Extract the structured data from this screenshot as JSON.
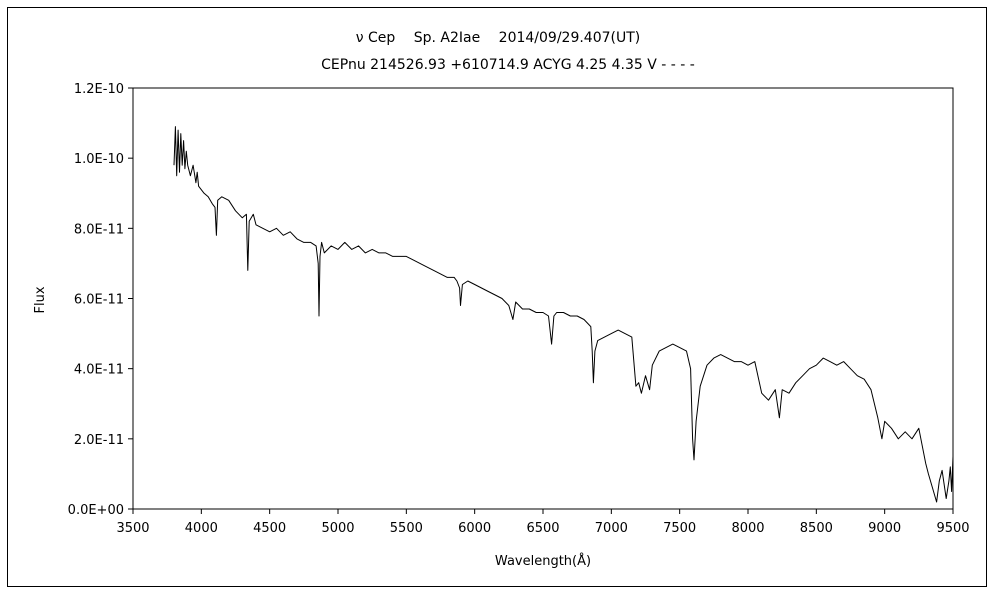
{
  "chart_data": {
    "type": "line",
    "title": "ν Cep　 Sp. A2Iae　 2014/09/29.407(UT)",
    "subtitle": "CEPnu 214526.93 +610714.9 ACYG 4.25 4.35 V - - - -",
    "xlabel": "Wavelength(Å)",
    "ylabel": "Flux",
    "xlim": [
      3500,
      9500
    ],
    "ylim": [
      0,
      1.2e-10
    ],
    "xticks": [
      3500,
      4000,
      4500,
      5000,
      5500,
      6000,
      6500,
      7000,
      7500,
      8000,
      8500,
      9000,
      9500
    ],
    "xtick_labels": [
      "3500",
      "4000",
      "4500",
      "5000",
      "5500",
      "6000",
      "6500",
      "7000",
      "7500",
      "8000",
      "8500",
      "9000",
      "9500"
    ],
    "yticks": [
      0,
      2e-11,
      4e-11,
      6e-11,
      8e-11,
      1e-10,
      1.2e-10
    ],
    "ytick_labels": [
      "0.0E+00",
      "2.0E-11",
      "4.0E-11",
      "6.0E-11",
      "8.0E-11",
      "1.0E-10",
      "1.2E-10"
    ],
    "grid": false,
    "series": [
      {
        "color": "#000000",
        "x": [
          3800,
          3810,
          3820,
          3830,
          3840,
          3850,
          3860,
          3870,
          3880,
          3890,
          3900,
          3920,
          3940,
          3960,
          3970,
          3980,
          4000,
          4020,
          4050,
          4080,
          4100,
          4110,
          4120,
          4150,
          4200,
          4250,
          4300,
          4330,
          4340,
          4350,
          4380,
          4400,
          4450,
          4500,
          4550,
          4600,
          4650,
          4700,
          4750,
          4800,
          4840,
          4855,
          4861,
          4868,
          4880,
          4900,
          4950,
          5000,
          5050,
          5100,
          5150,
          5200,
          5250,
          5300,
          5350,
          5400,
          5450,
          5500,
          5550,
          5600,
          5650,
          5700,
          5750,
          5800,
          5850,
          5870,
          5890,
          5896,
          5910,
          5950,
          6000,
          6050,
          6100,
          6150,
          6200,
          6250,
          6280,
          6300,
          6350,
          6400,
          6450,
          6500,
          6540,
          6563,
          6580,
          6600,
          6650,
          6700,
          6750,
          6800,
          6850,
          6860,
          6869,
          6880,
          6900,
          6950,
          7000,
          7050,
          7100,
          7150,
          7180,
          7200,
          7220,
          7250,
          7280,
          7300,
          7350,
          7400,
          7450,
          7500,
          7550,
          7580,
          7595,
          7605,
          7620,
          7650,
          7700,
          7750,
          7800,
          7850,
          7900,
          7950,
          8000,
          8050,
          8100,
          8150,
          8200,
          8230,
          8250,
          8300,
          8350,
          8400,
          8450,
          8500,
          8550,
          8600,
          8650,
          8700,
          8750,
          8800,
          8850,
          8900,
          8950,
          8980,
          9000,
          9050,
          9100,
          9150,
          9200,
          9250,
          9300,
          9320,
          9350,
          9380,
          9400,
          9420,
          9450,
          9470,
          9480,
          9490,
          9500
        ],
        "y": [
          9.8e-11,
          1.09e-10,
          9.5e-11,
          1.08e-10,
          9.6e-11,
          1.07e-10,
          9.8e-11,
          1.05e-10,
          9.7e-11,
          1.02e-10,
          9.8e-11,
          9.5e-11,
          9.8e-11,
          9.3e-11,
          9.6e-11,
          9.2e-11,
          9.1e-11,
          9e-11,
          8.9e-11,
          8.7e-11,
          8.6e-11,
          7.8e-11,
          8.8e-11,
          8.9e-11,
          8.8e-11,
          8.5e-11,
          8.3e-11,
          8.4e-11,
          6.8e-11,
          8.2e-11,
          8.4e-11,
          8.1e-11,
          8e-11,
          7.9e-11,
          8e-11,
          7.8e-11,
          7.9e-11,
          7.7e-11,
          7.6e-11,
          7.6e-11,
          7.5e-11,
          7e-11,
          5.5e-11,
          7.2e-11,
          7.6e-11,
          7.3e-11,
          7.5e-11,
          7.4e-11,
          7.6e-11,
          7.4e-11,
          7.5e-11,
          7.3e-11,
          7.4e-11,
          7.3e-11,
          7.3e-11,
          7.2e-11,
          7.2e-11,
          7.2e-11,
          7.1e-11,
          7e-11,
          6.9e-11,
          6.8e-11,
          6.7e-11,
          6.6e-11,
          6.6e-11,
          6.5e-11,
          6.3e-11,
          5.8e-11,
          6.4e-11,
          6.5e-11,
          6.4e-11,
          6.3e-11,
          6.2e-11,
          6.1e-11,
          6e-11,
          5.8e-11,
          5.4e-11,
          5.9e-11,
          5.7e-11,
          5.7e-11,
          5.6e-11,
          5.6e-11,
          5.5e-11,
          4.7e-11,
          5.5e-11,
          5.6e-11,
          5.6e-11,
          5.5e-11,
          5.5e-11,
          5.4e-11,
          5.2e-11,
          4.5e-11,
          3.6e-11,
          4.5e-11,
          4.8e-11,
          4.9e-11,
          5e-11,
          5.1e-11,
          5e-11,
          4.9e-11,
          3.5e-11,
          3.6e-11,
          3.3e-11,
          3.8e-11,
          3.4e-11,
          4.1e-11,
          4.5e-11,
          4.6e-11,
          4.7e-11,
          4.6e-11,
          4.5e-11,
          4e-11,
          2e-11,
          1.4e-11,
          2.5e-11,
          3.5e-11,
          4.1e-11,
          4.3e-11,
          4.4e-11,
          4.3e-11,
          4.2e-11,
          4.2e-11,
          4.1e-11,
          4.2e-11,
          3.3e-11,
          3.1e-11,
          3.4e-11,
          2.6e-11,
          3.4e-11,
          3.3e-11,
          3.6e-11,
          3.8e-11,
          4e-11,
          4.1e-11,
          4.3e-11,
          4.2e-11,
          4.1e-11,
          4.2e-11,
          4e-11,
          3.8e-11,
          3.7e-11,
          3.4e-11,
          2.6e-11,
          2e-11,
          2.5e-11,
          2.3e-11,
          2e-11,
          2.2e-11,
          2e-11,
          2.3e-11,
          1.3e-11,
          1e-11,
          6e-12,
          2e-12,
          8e-12,
          1.1e-11,
          3e-12,
          8e-12,
          1.2e-11,
          5e-12,
          1.5e-11
        ]
      }
    ]
  }
}
